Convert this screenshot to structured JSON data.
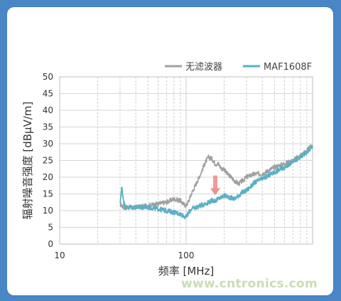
{
  "chart_data": {
    "type": "line",
    "xscale": "log",
    "xlim": [
      10,
      1000
    ],
    "ylim": [
      0,
      50
    ],
    "xlabel": "频率 [MHz]",
    "ylabel": "辐射噪音强度 [dBμV/m]",
    "x_tick_labels": [
      "10",
      "100"
    ],
    "y_ticks": [
      0,
      5,
      10,
      15,
      20,
      25,
      30,
      35,
      40,
      45,
      50
    ],
    "grid": true,
    "legend_position": "top-right",
    "series": [
      {
        "name": "无滤波器",
        "color": "#a0a0a0",
        "x": [
          30,
          31,
          32,
          35,
          40,
          50,
          60,
          70,
          80,
          90,
          95,
          100,
          105,
          110,
          120,
          130,
          140,
          150,
          160,
          170,
          180,
          190,
          200,
          210,
          220,
          240,
          260,
          280,
          300,
          320,
          350,
          400,
          450,
          500,
          600,
          700,
          800,
          900,
          1000
        ],
        "y": [
          12,
          11.5,
          11,
          11,
          11,
          11.5,
          12,
          12.5,
          13.5,
          13,
          12,
          11.5,
          13,
          15,
          18,
          21,
          24,
          26,
          25.5,
          24,
          24,
          22.5,
          22.5,
          21,
          20.5,
          19,
          18,
          19,
          20,
          20.5,
          21,
          21,
          22,
          23,
          24,
          25,
          26.5,
          28,
          29.5
        ]
      },
      {
        "name": "MAF1608F",
        "color": "#5ab1c5",
        "x": [
          30,
          31,
          32,
          33,
          35,
          40,
          50,
          60,
          70,
          80,
          90,
          95,
          100,
          105,
          110,
          120,
          130,
          140,
          150,
          160,
          170,
          180,
          190,
          200,
          220,
          240,
          260,
          280,
          300,
          320,
          350,
          400,
          450,
          500,
          600,
          700,
          800,
          900,
          1000
        ],
        "y": [
          12,
          17,
          13,
          11,
          11,
          11,
          11,
          10.5,
          10,
          9.5,
          9,
          8.5,
          8,
          9.5,
          10.5,
          11,
          11.5,
          12,
          12.5,
          13,
          13,
          13.5,
          14,
          14.5,
          14,
          13.5,
          14.5,
          15.5,
          16,
          17,
          18.5,
          19.5,
          20.5,
          21.5,
          23,
          24.5,
          26,
          27.5,
          29
        ]
      }
    ]
  },
  "watermark": "www.cntronics.com"
}
